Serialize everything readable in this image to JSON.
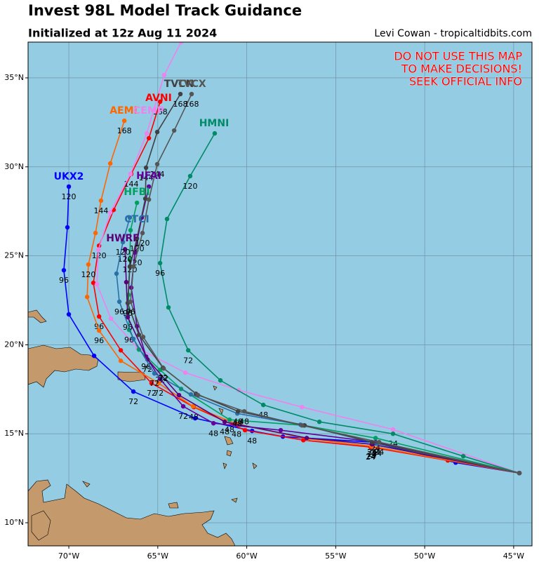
{
  "map": {
    "title": "Invest 98L Model Track Guidance",
    "subtitle": "Initialized at 12z Aug 11 2024",
    "credit": "Levi Cowan - tropicaltidbits.com",
    "warning": [
      "DO NOT USE THIS MAP",
      "TO MAKE DECISIONS!",
      "SEEK OFFICIAL INFO"
    ],
    "lon_range": [
      -72.29,
      -43.97
    ],
    "lat_range": [
      8.7,
      37.01
    ],
    "lon_ticks": [
      {
        "value": -70,
        "label": "70°W"
      },
      {
        "value": -65,
        "label": "65°W"
      },
      {
        "value": -60,
        "label": "60°W"
      },
      {
        "value": -55,
        "label": "55°W"
      },
      {
        "value": -50,
        "label": "50°W"
      },
      {
        "value": -45,
        "label": "45°W"
      }
    ],
    "lat_ticks": [
      {
        "value": 10,
        "label": "10°N"
      },
      {
        "value": 15,
        "label": "15°N"
      },
      {
        "value": 20,
        "label": "20°N"
      },
      {
        "value": 25,
        "label": "25°N"
      },
      {
        "value": 30,
        "label": "30°N"
      },
      {
        "value": 35,
        "label": "35°N"
      }
    ],
    "tracks": [
      {
        "name": "UKX2",
        "color": "#0000ff",
        "lon": [
          -44.68,
          -48.26,
          -52.96,
          -57.97,
          -59.7,
          -62.9,
          -66.37,
          -68.58,
          -70.0,
          -70.28,
          -70.08,
          -70.0
        ],
        "lat": [
          12.79,
          13.38,
          14.53,
          14.84,
          15.16,
          15.87,
          17.37,
          19.38,
          21.71,
          24.19,
          26.6,
          28.89
        ],
        "hour_labels": [
          null,
          null,
          "24",
          null,
          "48",
          null,
          "72",
          null,
          null,
          "96",
          null,
          "120"
        ]
      },
      {
        "name": "AVNI",
        "color": "#ff0000",
        "lon": [
          -44.68,
          -48.7,
          -53.04,
          -56.82,
          -60.1,
          -62.98,
          -65.35,
          -67.08,
          -68.3,
          -68.62,
          -68.3,
          -67.48,
          -66.49,
          -65.5,
          -64.87
        ],
        "lat": [
          12.79,
          13.5,
          14.25,
          14.64,
          15.2,
          16.5,
          17.84,
          19.69,
          21.59,
          23.48,
          25.57,
          27.58,
          29.6,
          31.61,
          33.66
        ],
        "hour_labels": [
          null,
          null,
          "24",
          null,
          null,
          "48",
          "72",
          null,
          "96",
          null,
          "120",
          null,
          "144",
          null,
          "168"
        ]
      },
      {
        "name": "AEMI",
        "color": "#ff6600",
        "lon": [
          -44.68,
          -53.0,
          -56.59,
          -60.57,
          -63.02,
          -64.95,
          -67.08,
          -68.3,
          -68.97,
          -68.9,
          -68.5,
          -68.19,
          -67.67,
          -66.88
        ],
        "lat": [
          12.79,
          14.3,
          14.72,
          15.55,
          16.54,
          17.84,
          19.1,
          20.8,
          22.69,
          24.51,
          26.28,
          28.1,
          30.19,
          32.59
        ],
        "hour_labels": [
          null,
          "24",
          null,
          "48",
          null,
          "72",
          null,
          "96",
          null,
          "120",
          null,
          "144",
          null,
          "168"
        ]
      },
      {
        "name": "CEMP",
        "color": "#ee82ee",
        "lon": [
          -44.68,
          -51.78,
          -56.9,
          -60.45,
          -63.45,
          -66.13,
          -67.63,
          -68.42,
          -68.34,
          -67.67,
          -66.53,
          -65.62,
          -64.64,
          -63.69
        ],
        "lat": [
          12.79,
          15.24,
          16.5,
          17.45,
          18.43,
          19.81,
          21.47,
          23.4,
          25.34,
          27.43,
          29.6,
          31.88,
          35.16,
          37.01
        ]
      },
      {
        "name": "HMNI",
        "color": "#008a66",
        "lon": [
          -44.68,
          -47.83,
          -51.78,
          -55.92,
          -59.07,
          -61.48,
          -63.29,
          -64.4,
          -64.87,
          -64.48,
          -63.18,
          -61.8
        ],
        "lat": [
          12.79,
          13.74,
          15.0,
          15.67,
          16.62,
          18.0,
          19.69,
          22.1,
          24.59,
          27.07,
          29.48,
          31.88
        ],
        "hour_labels": [
          null,
          null,
          "24",
          null,
          "48",
          null,
          "72",
          null,
          "96",
          null,
          "120",
          null
        ]
      },
      {
        "name": "HFBI",
        "color": "#00a060",
        "lon": [
          -44.68,
          -52.76,
          -56.79,
          -60.97,
          -63.69,
          -64.87,
          -66.06,
          -66.61,
          -66.65,
          -66.57,
          -66.53,
          -66.17
        ],
        "lat": [
          12.79,
          14.76,
          15.47,
          15.79,
          17.52,
          18.59,
          19.73,
          20.84,
          22.81,
          24.78,
          26.44,
          27.98
        ],
        "hour_labels": [
          null,
          "24",
          null,
          "48",
          null,
          "72",
          null,
          "96",
          null,
          "120",
          null,
          null
        ]
      },
      {
        "name": "HFAI",
        "color": "#660099",
        "lon": [
          -44.68,
          -52.76,
          -58.09,
          -61.87,
          -63.57,
          -64.87,
          -65.66,
          -66.17,
          -66.49,
          -66.29,
          -65.9,
          -65.5
        ],
        "lat": [
          12.79,
          14.53,
          15.2,
          15.59,
          16.54,
          18.08,
          19.34,
          21.04,
          23.21,
          25.18,
          27.15,
          28.89
        ],
        "hour_labels": [
          null,
          "24",
          null,
          "48",
          "72",
          null,
          "96",
          null,
          null,
          "120",
          null,
          null
        ]
      },
      {
        "name": "HWRF",
        "color": "#5a0078",
        "lon": [
          -44.68,
          -52.96,
          -56.63,
          -61.24,
          -63.81,
          -65.58,
          -66.69,
          -66.77,
          -66.84
        ],
        "lat": [
          12.79,
          14.41,
          14.76,
          15.67,
          17.17,
          19.18,
          21.55,
          23.52,
          25.37
        ],
        "hour_labels": [
          null,
          "24",
          null,
          "48",
          null,
          "72",
          "96",
          null,
          "120"
        ]
      },
      {
        "name": "CTCI",
        "color": "#2a6fa8",
        "lon": [
          -44.68,
          -52.68,
          -56.98,
          -60.53,
          -63.14,
          -65.19,
          -66.37,
          -67.16,
          -67.32,
          -66.96,
          -66.57
        ],
        "lat": [
          12.79,
          14.45,
          15.51,
          16.14,
          17.21,
          18.39,
          20.33,
          22.42,
          24.0,
          25.77,
          27.15
        ],
        "hour_labels": [
          null,
          "24",
          null,
          "48",
          null,
          "72",
          null,
          "96",
          null,
          "120",
          null
        ]
      },
      {
        "name": "TVCN",
        "color": "#404040",
        "lon": [
          -44.68,
          -52.96,
          -56.75,
          -60.49,
          -62.86,
          -64.71,
          -66.06,
          -66.69,
          -66.57,
          -66.17,
          -65.7,
          -65.66,
          -65.03,
          -63.73
        ],
        "lat": [
          12.79,
          14.53,
          15.47,
          16.26,
          17.25,
          18.71,
          20.56,
          22.34,
          24.39,
          25.97,
          28.21,
          29.95,
          31.96,
          34.09
        ],
        "hour_labels": [
          null,
          "24",
          null,
          "48",
          null,
          "72",
          null,
          "96",
          null,
          "120",
          null,
          "144",
          null,
          "168"
        ]
      },
      {
        "name": "TVCX",
        "color": "#555555",
        "lon": [
          -44.68,
          -52.56,
          -56.9,
          -60.14,
          -62.74,
          -64.67,
          -65.82,
          -66.53,
          -66.37,
          -65.86,
          -65.5,
          -65.03,
          -64.08,
          -63.1
        ],
        "lat": [
          12.79,
          14.53,
          15.47,
          16.26,
          17.17,
          18.67,
          20.44,
          22.42,
          24.39,
          26.28,
          28.16,
          30.15,
          32.04,
          34.09
        ],
        "hour_labels": [
          null,
          "24",
          null,
          "48",
          null,
          "72",
          null,
          "96",
          null,
          "120",
          null,
          "144",
          null,
          "168"
        ]
      }
    ]
  }
}
